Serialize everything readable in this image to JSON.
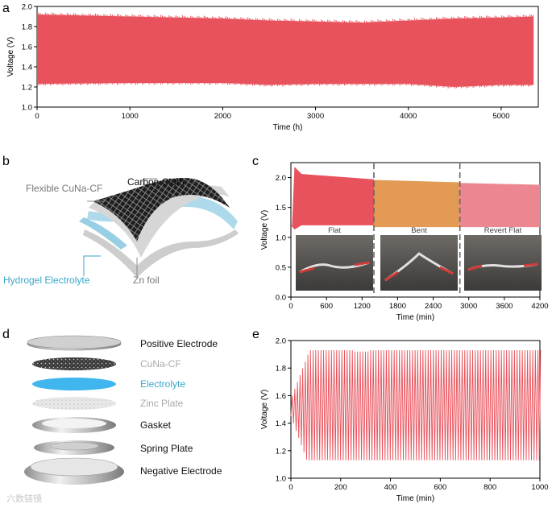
{
  "panel_labels": [
    "a",
    "b",
    "c",
    "d",
    "e"
  ],
  "colors": {
    "red": "#e8525c",
    "orange": "#e29a55",
    "pink": "#ec8791",
    "blue": "#3aa6c9",
    "gray": "#888888"
  },
  "diagram_b": {
    "labels": [
      "Flexible CuNa-CF",
      "Carbon Cloth",
      "Hydrogel Electrolyte",
      "Zn foil"
    ]
  },
  "diagram_d": {
    "labels": [
      "Positive Electrode",
      "CuNa-CF",
      "Electrolyte",
      "Zinc Plate",
      "Gasket",
      "Spring Plate",
      "Negative Electrode"
    ]
  },
  "photos_c": [
    "Flat",
    "Bent",
    "Revert Flat"
  ],
  "watermark": "六数链镜",
  "chart_data": [
    {
      "id": "a",
      "type": "area",
      "xlabel": "Time (h)",
      "ylabel": "Voltage (V)",
      "xlim": [
        0,
        5400
      ],
      "ylim": [
        1.0,
        2.0
      ],
      "xticks": [
        0,
        1000,
        2000,
        3000,
        4000,
        5000
      ],
      "yticks": [
        1.0,
        1.2,
        1.4,
        1.6,
        1.8,
        2.0
      ],
      "envelope_x": [
        0,
        1000,
        2000,
        2500,
        3000,
        3500,
        4000,
        4500,
        5000,
        5350
      ],
      "envelope_upper": [
        1.92,
        1.9,
        1.88,
        1.86,
        1.85,
        1.84,
        1.86,
        1.88,
        1.89,
        1.9
      ],
      "envelope_lower": [
        1.23,
        1.24,
        1.24,
        1.22,
        1.23,
        1.23,
        1.23,
        1.2,
        1.22,
        1.22
      ],
      "series_color": "#e8525c"
    },
    {
      "id": "c",
      "type": "area",
      "xlabel": "Time (min)",
      "ylabel": "Voltage (V)",
      "xlim": [
        0,
        4200
      ],
      "ylim": [
        0.0,
        2.25
      ],
      "xticks": [
        0,
        600,
        1200,
        1800,
        2400,
        3000,
        3600,
        4200
      ],
      "yticks": [
        0.0,
        0.5,
        1.0,
        1.5,
        2.0
      ],
      "dividers_x": [
        1400,
        2850
      ],
      "segments": [
        {
          "name": "Flat",
          "x": [
            0,
            1400
          ],
          "upper_start": 2.18,
          "upper_end": 1.97,
          "lower": 1.2,
          "color": "#e8525c"
        },
        {
          "name": "Bent",
          "x": [
            1400,
            2850
          ],
          "upper_start": 1.96,
          "upper_end": 1.92,
          "lower": 1.17,
          "color": "#e29a55"
        },
        {
          "name": "Revert Flat",
          "x": [
            2850,
            4200
          ],
          "upper_start": 1.91,
          "upper_end": 1.88,
          "lower": 1.17,
          "color": "#ec8791"
        }
      ]
    },
    {
      "id": "e",
      "type": "line",
      "xlabel": "Time (min)",
      "ylabel": "Voltage (V)",
      "xlim": [
        0,
        1000
      ],
      "ylim": [
        1.0,
        2.0
      ],
      "xticks": [
        0,
        200,
        400,
        600,
        800,
        1000
      ],
      "yticks": [
        1.0,
        1.2,
        1.4,
        1.6,
        1.8,
        2.0
      ],
      "cycle_period_min": 10.5,
      "upper_plateau": 1.93,
      "lower_plateau": 1.13,
      "series_color": "#e8525c"
    }
  ]
}
